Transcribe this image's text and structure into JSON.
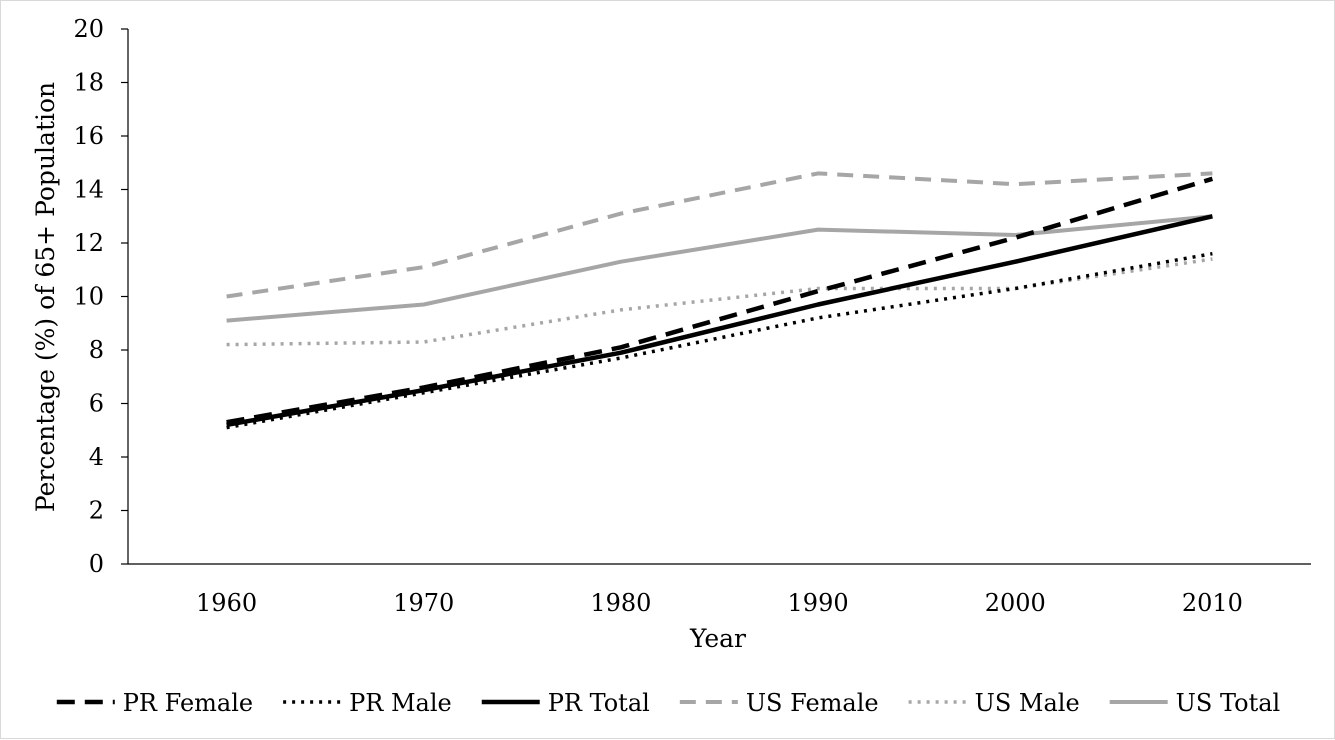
{
  "chart_data": {
    "type": "line",
    "title": "",
    "xlabel": "Year",
    "ylabel": "Percentage (%) of 65+ Population",
    "x": [
      "1960",
      "1970",
      "1980",
      "1990",
      "2000",
      "2010"
    ],
    "ylim": [
      0,
      20
    ],
    "yticks": [
      "0",
      "2",
      "4",
      "6",
      "8",
      "10",
      "12",
      "14",
      "16",
      "18",
      "20"
    ],
    "grid": false,
    "legend_position": "bottom",
    "series": [
      {
        "name": "PR Female",
        "values": [
          5.3,
          6.6,
          8.1,
          10.2,
          12.2,
          14.4
        ],
        "color": "#000000",
        "style": "dashed"
      },
      {
        "name": "PR Male",
        "values": [
          5.1,
          6.4,
          7.7,
          9.2,
          10.3,
          11.6
        ],
        "color": "#000000",
        "style": "dotted"
      },
      {
        "name": "PR Total",
        "values": [
          5.2,
          6.5,
          7.9,
          9.7,
          11.3,
          13.0
        ],
        "color": "#000000",
        "style": "solid"
      },
      {
        "name": "US Female",
        "values": [
          10.0,
          11.1,
          13.1,
          14.6,
          14.2,
          14.6
        ],
        "color": "#a6a6a6",
        "style": "dashed"
      },
      {
        "name": "US Male",
        "values": [
          8.2,
          8.3,
          9.5,
          10.3,
          10.3,
          11.4
        ],
        "color": "#a6a6a6",
        "style": "dotted"
      },
      {
        "name": "US Total",
        "values": [
          9.1,
          9.7,
          11.3,
          12.5,
          12.3,
          13.0
        ],
        "color": "#a6a6a6",
        "style": "solid"
      }
    ]
  }
}
